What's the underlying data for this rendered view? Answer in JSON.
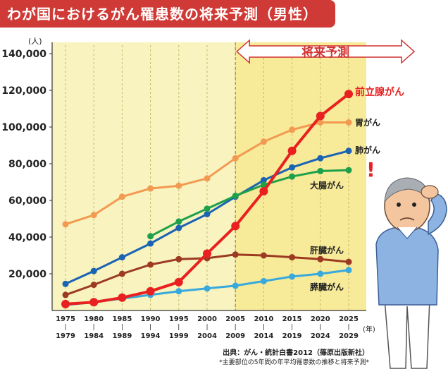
{
  "title": "わが国におけるがん罹患数の将来予測（男性）",
  "source": "出典：がん・統計白書2012（篠原出版新社）",
  "note": "*主要部位の5年間の年平均罹患数の推移と将来予測*",
  "colors": {
    "prostate": "#e8201f",
    "stomach": "#f29a52",
    "lung": "#1b63b3",
    "colon": "#1ea04a",
    "liver": "#9c3a22",
    "pancreas": "#38a9dc",
    "plot_bg": "#f8f3bf",
    "future_bg": "#f7ea99",
    "title_bg": "#cf3a36"
  },
  "chart_data": {
    "type": "line",
    "y_unit": "(人)",
    "x_unit": "(年)",
    "projection_label": "将来予測",
    "projection_start": "2005",
    "categories": [
      "1975-1979",
      "1980-1984",
      "1985-1989",
      "1990-1994",
      "1995-1999",
      "2000-2004",
      "2005-2009",
      "2010-2014",
      "2015-2019",
      "2020-2024",
      "2025-2029"
    ],
    "x_ticks": [
      [
        "1975",
        "1979"
      ],
      [
        "1980",
        "1984"
      ],
      [
        "1985",
        "1989"
      ],
      [
        "1990",
        "1994"
      ],
      [
        "1995",
        "1999"
      ],
      [
        "2000",
        "2004"
      ],
      [
        "2005",
        "2009"
      ],
      [
        "2010",
        "2014"
      ],
      [
        "2015",
        "2019"
      ],
      [
        "2020",
        "2024"
      ],
      [
        "2025",
        "2029"
      ]
    ],
    "y_ticks": [
      "20,000",
      "40,000",
      "60,000",
      "80,000",
      "100,000",
      "120,000",
      "140,000"
    ],
    "ylim": [
      0,
      140000
    ],
    "series": [
      {
        "name": "前立腺がん",
        "key": "prostate",
        "values": [
          3500,
          4500,
          7000,
          10500,
          15500,
          31000,
          46000,
          65000,
          87000,
          106000,
          118000
        ]
      },
      {
        "name": "胃がん",
        "key": "stomach",
        "values": [
          47000,
          52000,
          62000,
          66500,
          68000,
          72000,
          83000,
          92000,
          98500,
          102500,
          102500
        ]
      },
      {
        "name": "肺がん",
        "key": "lung",
        "values": [
          14500,
          21500,
          29000,
          36500,
          45000,
          52500,
          62000,
          71000,
          78000,
          83000,
          87000
        ]
      },
      {
        "name": "大腸がん",
        "key": "colon",
        "values": [
          null,
          null,
          null,
          40500,
          48500,
          55500,
          62500,
          68500,
          73000,
          76000,
          76500
        ]
      },
      {
        "name": "肝臓がん",
        "key": "liver",
        "values": [
          8500,
          14000,
          20000,
          25000,
          28000,
          28500,
          30500,
          30000,
          29000,
          28000,
          26500
        ]
      },
      {
        "name": "膵臓がん",
        "key": "pancreas",
        "values": [
          3000,
          4500,
          6500,
          8500,
          10500,
          12000,
          13500,
          16000,
          18500,
          20000,
          22000
        ]
      }
    ]
  }
}
